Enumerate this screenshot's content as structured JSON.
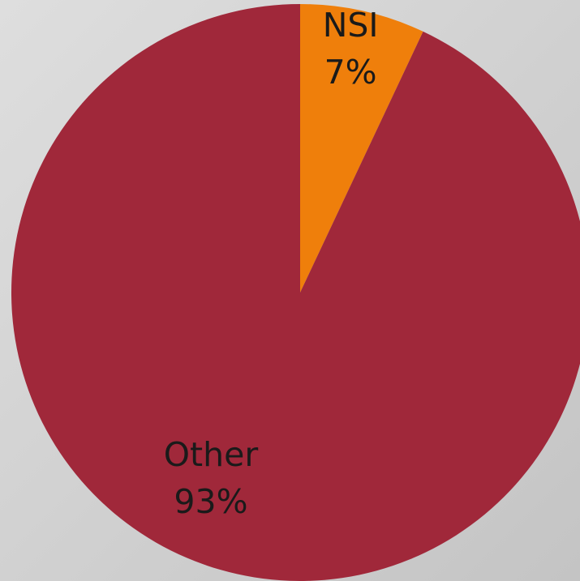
{
  "chart_data": {
    "type": "pie",
    "categories": [
      "NSI",
      "Other"
    ],
    "values": [
      7,
      93
    ],
    "value_labels": [
      "7%",
      "93%"
    ],
    "colors": [
      "#ef7f0b",
      "#a0283a"
    ]
  }
}
